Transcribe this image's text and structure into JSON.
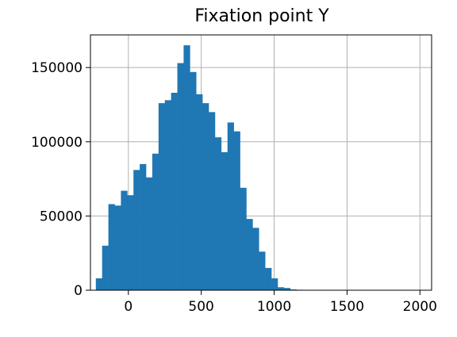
{
  "chart_data": {
    "type": "bar",
    "title": "Fixation point Y",
    "xlabel": "",
    "ylabel": "",
    "grid": true,
    "xlim": [
      -260,
      2080
    ],
    "ylim": [
      0,
      172000
    ],
    "xticks": [
      0,
      500,
      1000,
      1500,
      2000
    ],
    "yticks": [
      0,
      50000,
      100000,
      150000
    ],
    "bin_width": 43,
    "bins_start": [
      -223,
      -180,
      -137,
      -94,
      -51,
      -8,
      35,
      78,
      121,
      164,
      207,
      250,
      293,
      336,
      379,
      422,
      465,
      508,
      551,
      594,
      637,
      680,
      723,
      766,
      809,
      852,
      895,
      938,
      981,
      1024,
      1067,
      1110,
      1153,
      1196,
      1239,
      1282,
      1325,
      1368,
      1411,
      1454,
      1497,
      1540,
      1583,
      1626,
      1669,
      1712,
      1755,
      1798,
      1841,
      1884,
      1927,
      1970,
      2013
    ],
    "values": [
      8000,
      30000,
      58000,
      57000,
      67000,
      64000,
      81000,
      85000,
      76000,
      92000,
      126000,
      128000,
      133000,
      153000,
      165000,
      147000,
      132000,
      126000,
      120000,
      103000,
      93000,
      113000,
      107000,
      69000,
      48000,
      42000,
      26000,
      15000,
      8000,
      2000,
      1500,
      500,
      300,
      200,
      150,
      100,
      80,
      60,
      50,
      40,
      30,
      20,
      20,
      15,
      10,
      10,
      10,
      5,
      5,
      5,
      5,
      5,
      5
    ]
  },
  "colors": {
    "bar": "#1f77b4",
    "grid": "#b0b0b0",
    "axis": "#000000",
    "background": "#ffffff"
  }
}
